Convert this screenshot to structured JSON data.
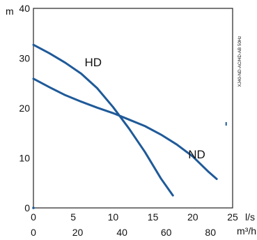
{
  "chart_data": {
    "type": "line",
    "x_unit": "l/s",
    "y_unit": "m",
    "secondary_x_unit": "m³/h",
    "xlim": [
      0,
      25
    ],
    "ylim": [
      0,
      40
    ],
    "x_ticks": [
      0,
      5,
      10,
      15,
      20,
      25
    ],
    "y_ticks": [
      0,
      10,
      20,
      30,
      40
    ],
    "secondary_x_ticks": [
      0,
      20,
      40,
      60,
      80
    ],
    "grid": false,
    "side_note": "XJ40-ND-AC/HD-AB 50Hz",
    "series": [
      {
        "name": "HD",
        "color": "#1f5a99",
        "x": [
          0,
          2,
          4,
          6,
          8,
          10,
          12,
          14,
          16,
          17.5
        ],
        "y": [
          32.7,
          31.0,
          29.1,
          26.9,
          24.0,
          20.2,
          15.9,
          11.2,
          5.9,
          2.5
        ]
      },
      {
        "name": "ND",
        "color": "#1f5a99",
        "x": [
          0,
          2,
          4,
          6,
          8,
          10,
          12,
          14,
          16,
          18,
          20,
          22,
          23
        ],
        "y": [
          25.9,
          24.2,
          22.6,
          21.3,
          20.1,
          19.0,
          17.7,
          16.4,
          14.7,
          12.7,
          10.3,
          7.2,
          5.8
        ]
      }
    ]
  }
}
